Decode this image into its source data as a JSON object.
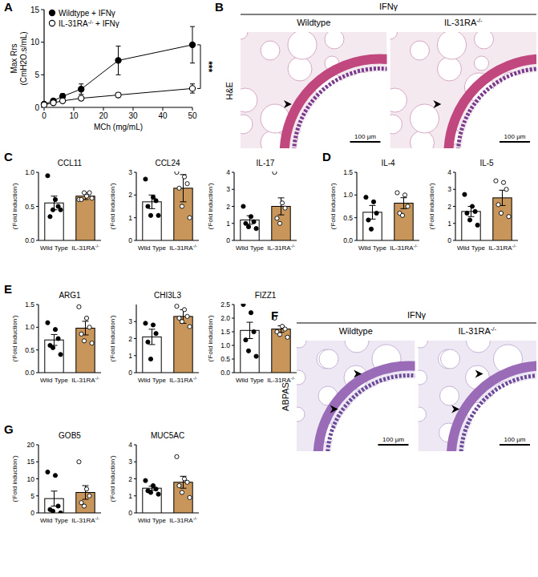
{
  "chart_data": [
    {
      "type": "line",
      "panel": "A",
      "xlabel": "MCh (mg/mL)",
      "ylabel": "Max Rrs (CmH2O.s/mL)",
      "x": [
        0,
        3.125,
        6.25,
        12.5,
        25,
        50
      ],
      "xlim": [
        0,
        50
      ],
      "xticks": [
        0,
        10,
        20,
        30,
        40,
        50
      ],
      "ylim": [
        0,
        15
      ],
      "yticks": [
        0,
        5,
        10,
        15
      ],
      "legend": "upper left",
      "annotations": [
        "***"
      ],
      "series": [
        {
          "name": "Wildtype + IFNγ",
          "color": "#000000",
          "marker": "circle",
          "values": [
            0.5,
            1.0,
            1.7,
            2.8,
            7.2,
            9.6
          ],
          "errors": [
            0.1,
            0.2,
            0.4,
            0.8,
            2.2,
            2.8
          ]
        },
        {
          "name": "IL-31RA-/- + IFNγ",
          "color": "#000000",
          "marker": "open_circle",
          "values": [
            0.4,
            0.7,
            1.0,
            1.4,
            1.9,
            2.9
          ],
          "errors": [
            0.1,
            0.1,
            0.2,
            0.3,
            0.3,
            0.7
          ]
        }
      ]
    },
    {
      "type": "bar",
      "panel": "C",
      "title": "CCL11",
      "ylabel": "('Fold induction')",
      "categories": [
        "Wild Type",
        "IL-31RA-/-"
      ],
      "colors": [
        "#ffffff",
        "#c8965a"
      ],
      "values": [
        0.55,
        0.65
      ],
      "errors": [
        0.1,
        0.05
      ],
      "points": [
        [
          0.95,
          0.6,
          0.5,
          0.35,
          0.45,
          0.45
        ],
        [
          0.6,
          0.65,
          0.7,
          0.6,
          0.7,
          0.62
        ]
      ],
      "ylim": [
        0,
        1
      ],
      "yticks": [
        {
          "value": 0,
          "label": "0.0"
        },
        0.5,
        {
          "value": 1,
          "label": "1.0"
        }
      ]
    },
    {
      "type": "bar",
      "title": "CCL24",
      "ylabel": "('Fold induction')",
      "categories": [
        "Wild Type",
        "IL-31RA-/-"
      ],
      "colors": [
        "#ffffff",
        "#c8965a"
      ],
      "values": [
        1.7,
        2.3
      ],
      "errors": [
        0.3,
        0.6
      ],
      "points": [
        [
          2.7,
          1.9,
          1.75,
          1.5,
          1.1,
          1.1
        ],
        [
          3.0,
          2.8,
          2.5,
          2.3,
          1.5,
          1.0
        ]
      ],
      "ylim": [
        0,
        3
      ],
      "yticks": [
        0,
        1,
        2,
        3
      ]
    },
    {
      "type": "bar",
      "title": "IL-17",
      "ylabel": "('Fold induction')",
      "categories": [
        "Wild Type",
        "IL-31RA-/-"
      ],
      "colors": [
        "#ffffff",
        "#c8965a"
      ],
      "values": [
        1.2,
        2.0
      ],
      "errors": [
        0.25,
        0.5
      ],
      "points": [
        [
          2.0,
          1.4,
          1.1,
          1.0,
          0.8,
          0.7
        ],
        [
          4.0,
          2.2,
          1.9,
          1.3,
          1.0
        ]
      ],
      "ylim": [
        0,
        4
      ],
      "yticks": [
        0,
        1,
        2,
        3,
        4
      ]
    },
    {
      "type": "bar",
      "panel": "D",
      "title": "IL-4",
      "ylabel": "('Fold induction')",
      "categories": [
        "Wild Type",
        "IL-31RA-/-"
      ],
      "colors": [
        "#ffffff",
        "#c8965a"
      ],
      "values": [
        0.62,
        0.82
      ],
      "errors": [
        0.15,
        0.12
      ],
      "points": [
        [
          0.95,
          0.85,
          0.6,
          0.45,
          0.25
        ],
        [
          1.05,
          1.0,
          0.75,
          0.6,
          0.55
        ]
      ],
      "ylim": [
        0,
        1.5
      ],
      "yticks": [
        {
          "value": 0,
          "label": "0.0"
        },
        0.5,
        {
          "value": 1,
          "label": "1.0"
        },
        1.5
      ]
    },
    {
      "type": "bar",
      "title": "IL-5",
      "ylabel": "('Fold induction')",
      "categories": [
        "Wild Type",
        "IL-31RA-/-"
      ],
      "colors": [
        "#ffffff",
        "#c8965a"
      ],
      "values": [
        1.7,
        2.5
      ],
      "errors": [
        0.3,
        0.45
      ],
      "points": [
        [
          2.7,
          2.0,
          1.7,
          1.6,
          1.2,
          0.9
        ],
        [
          3.5,
          3.4,
          3.0,
          2.1,
          1.6,
          1.4
        ]
      ],
      "ylim": [
        0,
        4
      ],
      "yticks": [
        0,
        1,
        2,
        3,
        4
      ]
    },
    {
      "type": "bar",
      "panel": "E",
      "title": "ARG1",
      "ylabel": "('Fold induction')",
      "categories": [
        "Wild Type",
        "IL-31RA-/-"
      ],
      "colors": [
        "#ffffff",
        "#c8965a"
      ],
      "values": [
        0.72,
        0.98
      ],
      "errors": [
        0.12,
        0.15
      ],
      "points": [
        [
          1.1,
          0.95,
          0.75,
          0.6,
          0.55,
          0.4
        ],
        [
          1.45,
          1.2,
          1.0,
          0.85,
          0.7,
          0.65
        ]
      ],
      "ylim": [
        0,
        1.5
      ],
      "yticks": [
        {
          "value": 0,
          "label": "0.0"
        },
        0.5,
        {
          "value": 1,
          "label": "1.0"
        },
        1.5
      ]
    },
    {
      "type": "bar",
      "title": "CHI3L3",
      "ylabel": "('Fold induction')",
      "categories": [
        "Wild Type",
        "IL-31RA-/-"
      ],
      "colors": [
        "#ffffff",
        "#c8965a"
      ],
      "values": [
        2.1,
        3.3
      ],
      "errors": [
        0.45,
        0.4
      ],
      "points": [
        [
          2.9,
          2.8,
          2.3,
          1.8,
          0.8
        ],
        [
          3.9,
          3.7,
          3.3,
          3.2,
          3.0,
          2.7
        ]
      ],
      "ylim": [
        0,
        4
      ],
      "yticks": [
        0,
        1,
        2,
        3
      ]
    },
    {
      "type": "bar",
      "title": "FIZZ1",
      "ylabel": "('Fold induction')",
      "categories": [
        "Wild Type",
        "IL-31RA-/-"
      ],
      "colors": [
        "#ffffff",
        "#c8965a"
      ],
      "values": [
        1.55,
        1.6
      ],
      "errors": [
        0.3,
        0.12
      ],
      "points": [
        [
          2.5,
          2.2,
          1.5,
          1.2,
          0.8,
          0.6
        ],
        [
          2.0,
          1.7,
          1.6,
          1.5,
          1.4,
          1.3
        ]
      ],
      "ylim": [
        0,
        2.5
      ],
      "yticks": [
        {
          "value": 0,
          "label": "0.0"
        },
        0.5,
        {
          "value": 1,
          "label": "1.0"
        },
        1.5,
        {
          "value": 2,
          "label": "2.0"
        },
        2.5
      ]
    },
    {
      "type": "bar",
      "panel": "G",
      "title": "GOB5",
      "ylabel": "('Fold induction')",
      "categories": [
        "Wild Type",
        "IL-31RA-/-"
      ],
      "colors": [
        "#ffffff",
        "#c8965a"
      ],
      "values": [
        4.2,
        6.0
      ],
      "errors": [
        2.2,
        2.0
      ],
      "points": [
        [
          12,
          11,
          2,
          1,
          0.5,
          0
        ],
        [
          15,
          7,
          5,
          3,
          2
        ]
      ],
      "ylim": [
        0,
        20
      ],
      "yticks": [
        0,
        5,
        10,
        15,
        20
      ]
    },
    {
      "type": "bar",
      "title": "MUC5AC",
      "ylabel": "('Fold induction')",
      "categories": [
        "Wild Type",
        "IL-31RA-/-"
      ],
      "colors": [
        "#ffffff",
        "#c8965a"
      ],
      "values": [
        1.45,
        1.8
      ],
      "errors": [
        0.12,
        0.35
      ],
      "points": [
        [
          1.9,
          1.6,
          1.4,
          1.3,
          1.2,
          1.1
        ],
        [
          3.3,
          2.0,
          1.8,
          1.6,
          1.2,
          0.9
        ]
      ],
      "ylim": [
        0,
        4
      ],
      "yticks": [
        0,
        1,
        2,
        3,
        4
      ]
    }
  ],
  "image_panels": [
    {
      "panel": "B",
      "header": "IFNγ",
      "stain": "H&E",
      "images": [
        {
          "label": "Wildtype",
          "scale_bar": "100 µm"
        },
        {
          "label": "IL-31RA-/-",
          "scale_bar": "100 µm"
        }
      ]
    },
    {
      "panel": "F",
      "header": "IFNγ",
      "stain": "ABPAS",
      "images": [
        {
          "label": "Wildtype",
          "scale_bar": "100 µm"
        },
        {
          "label": "IL-31RA-/-",
          "scale_bar": "100 µm"
        }
      ]
    }
  ]
}
